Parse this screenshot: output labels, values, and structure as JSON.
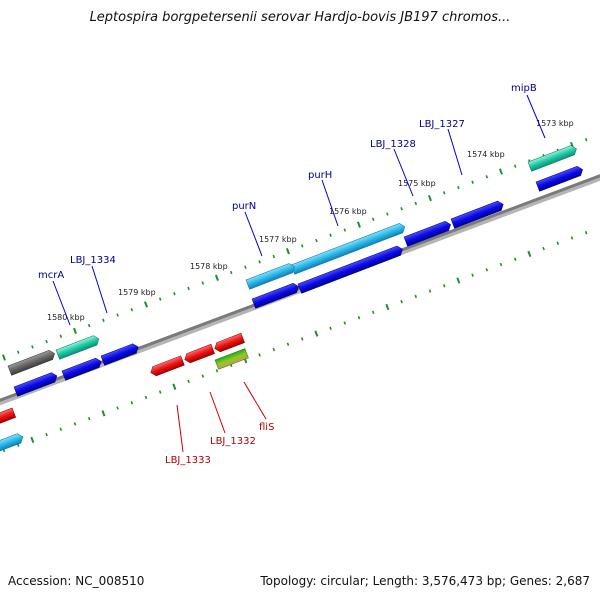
{
  "title": "Leptospira borgpetersenii serovar Hardjo-bovis JB197 chromos...",
  "footer": {
    "accession": "Accession: NC_008510",
    "summary": "Topology: circular; Length: 3,576,473 bp; Genes: 2,687"
  },
  "colors": {
    "backbone": "#808080",
    "ticks": "#1f8f2a",
    "forward_label": "#00008b",
    "reverse_label": "#b30000",
    "blue": "#0a0ae6",
    "cyan": "#29b8e8",
    "red": "#ee1111",
    "teal": "#1fc9a8",
    "gray": "#666666"
  },
  "kbp_labels": [
    "1573 kbp",
    "1574 kbp",
    "1575 kbp",
    "1576 kbp",
    "1577 kbp",
    "1578 kbp",
    "1579 kbp",
    "1580 kbp"
  ],
  "forward_genes": [
    "mipB",
    "LBJ_1327",
    "LBJ_1328",
    "purH",
    "purN",
    "LBJ_1334",
    "mcrA"
  ],
  "reverse_genes": [
    "fliS",
    "LBJ_1332",
    "LBJ_1333"
  ]
}
